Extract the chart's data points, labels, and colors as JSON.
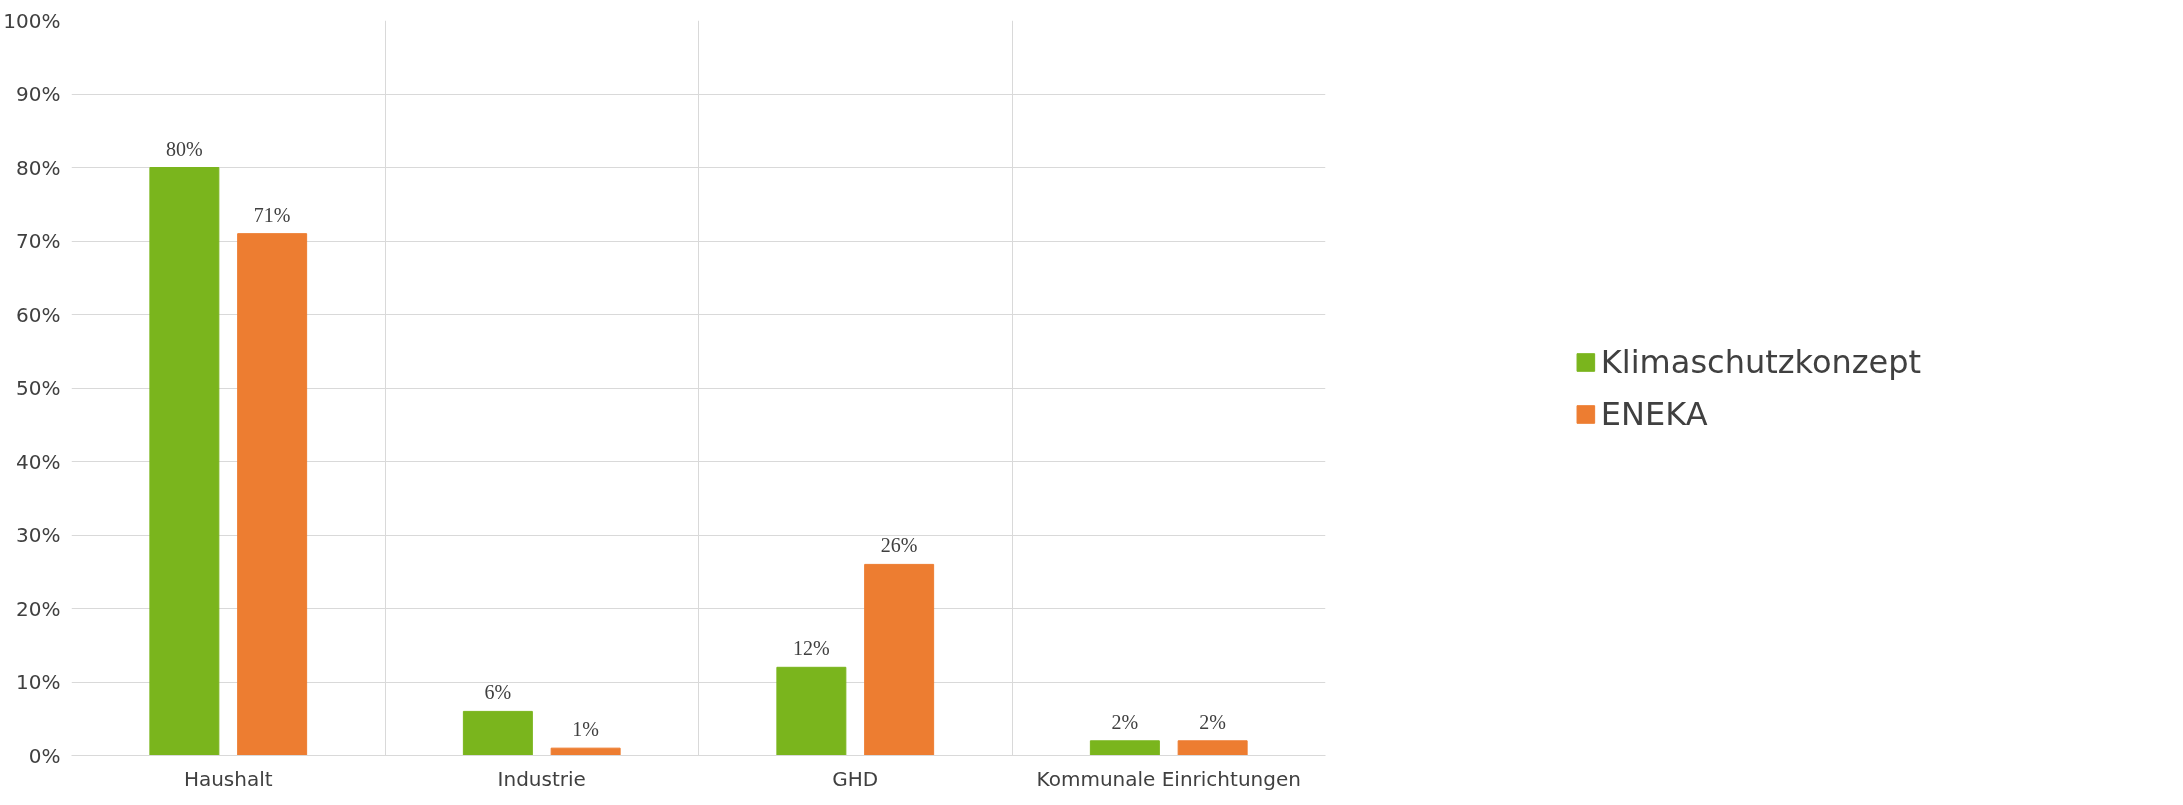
{
  "chart_data": {
    "type": "bar",
    "categories": [
      "Haushalt",
      "Industrie",
      "GHD",
      "Kommunale Einrichtungen"
    ],
    "series": [
      {
        "name": "Klimaschutzkonzept",
        "color": "#7ab51d",
        "values": [
          80,
          6,
          12,
          2
        ],
        "value_labels": [
          "80%",
          "6%",
          "12%",
          "2%"
        ]
      },
      {
        "name": "ENEKA",
        "color": "#ed7d31",
        "values": [
          71,
          1,
          26,
          2
        ],
        "value_labels": [
          "71%",
          "1%",
          "26%",
          "2%"
        ]
      }
    ],
    "ylim": [
      0,
      100
    ],
    "yticks": [
      {
        "value": 0,
        "label": "0%"
      },
      {
        "value": 10,
        "label": "10%"
      },
      {
        "value": 20,
        "label": "20%"
      },
      {
        "value": 30,
        "label": "30%"
      },
      {
        "value": 40,
        "label": "40%"
      },
      {
        "value": 50,
        "label": "50%"
      },
      {
        "value": 60,
        "label": "60%"
      },
      {
        "value": 70,
        "label": "70%"
      },
      {
        "value": 80,
        "label": "80%"
      },
      {
        "value": 90,
        "label": "90%"
      },
      {
        "value": 100,
        "label": "100%"
      }
    ],
    "grid": true,
    "legend": "right"
  }
}
